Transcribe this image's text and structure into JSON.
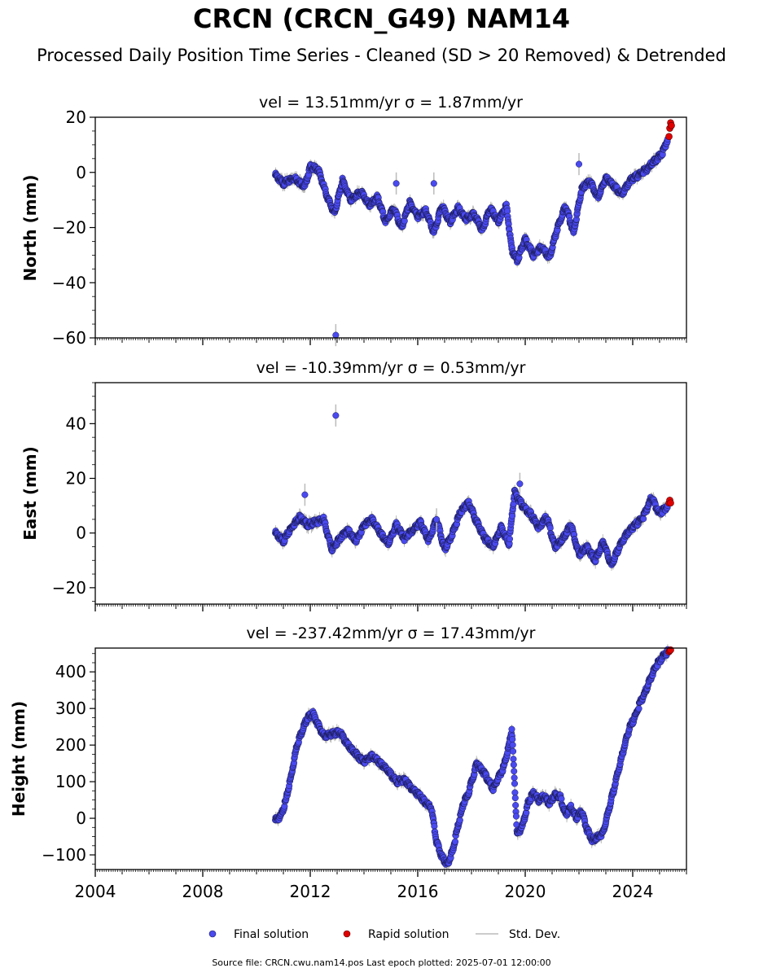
{
  "title": "CRCN (CRCN_G49) NAM14",
  "subtitle": "Processed Daily Position Time Series - Cleaned (SD > 20 Removed) & Detrended",
  "footer": "Source file: CRCN.cwu.nam14.pos  Last epoch plotted: 2025-07-01 12:00:00",
  "legend": {
    "final_label": "Final solution",
    "rapid_label": "Rapid solution",
    "std_label": "Std. Dev."
  },
  "colors": {
    "final": "#4a4af0",
    "final_edge": "#1a1a55",
    "rapid": "#e00000",
    "std": "#bbbbbb"
  },
  "chart_data": [
    {
      "type": "scatter",
      "panel": "north",
      "title": "vel = 13.51mm/yr   σ = 1.87mm/yr",
      "ylabel": "North (mm)",
      "xlim": [
        2004,
        2026
      ],
      "ylim": [
        -60,
        20
      ],
      "yticks": [
        -60,
        -40,
        -20,
        0,
        20
      ],
      "xticks": [
        2004,
        2008,
        2012,
        2016,
        2020,
        2024
      ],
      "show_xtick_labels": false,
      "series": [
        {
          "name": "Final solution",
          "x": [
            2010.7,
            2011.0,
            2011.4,
            2011.8,
            2012.0,
            2012.3,
            2012.6,
            2012.9,
            2013.2,
            2013.5,
            2013.9,
            2014.2,
            2014.5,
            2014.8,
            2015.1,
            2015.4,
            2015.7,
            2016.0,
            2016.3,
            2016.6,
            2016.9,
            2017.2,
            2017.5,
            2017.8,
            2018.1,
            2018.4,
            2018.7,
            2019.0,
            2019.3,
            2019.5,
            2019.7,
            2020.0,
            2020.3,
            2020.6,
            2020.9,
            2021.2,
            2021.5,
            2021.8,
            2022.1,
            2022.4,
            2022.7,
            2023.0,
            2023.3,
            2023.6,
            2023.9,
            2024.2,
            2024.5,
            2024.8,
            2025.1,
            2025.3
          ],
          "y": [
            -1,
            -4,
            -2,
            -5,
            2,
            1,
            -8,
            -15,
            -3,
            -10,
            -7,
            -12,
            -9,
            -18,
            -13,
            -20,
            -11,
            -16,
            -14,
            -22,
            -12,
            -18,
            -13,
            -17,
            -15,
            -21,
            -13,
            -18,
            -12,
            -28,
            -32,
            -24,
            -30,
            -27,
            -31,
            -20,
            -12,
            -22,
            -6,
            -3,
            -9,
            -2,
            -5,
            -8,
            -3,
            -1,
            1,
            4,
            7,
            12
          ]
        },
        {
          "name": "Rapid solution",
          "x": [
            2025.35,
            2025.38,
            2025.41,
            2025.44
          ],
          "y": [
            13,
            16,
            18,
            17
          ]
        }
      ],
      "outliers": [
        {
          "x": 2012.95,
          "y": -59
        },
        {
          "x": 2015.2,
          "y": -4
        },
        {
          "x": 2016.6,
          "y": -4
        },
        {
          "x": 2022.0,
          "y": 3
        }
      ]
    },
    {
      "type": "scatter",
      "panel": "east",
      "title": "vel = -10.39mm/yr   σ = 0.53mm/yr",
      "ylabel": "East (mm)",
      "xlim": [
        2004,
        2026
      ],
      "ylim": [
        -26,
        55
      ],
      "yticks": [
        -20,
        0,
        20,
        40
      ],
      "xticks": [
        2004,
        2008,
        2012,
        2016,
        2020,
        2024
      ],
      "show_xtick_labels": false,
      "series": [
        {
          "name": "Final solution",
          "x": [
            2010.7,
            2011.0,
            2011.3,
            2011.6,
            2011.9,
            2012.2,
            2012.5,
            2012.8,
            2013.1,
            2013.4,
            2013.7,
            2014.0,
            2014.3,
            2014.6,
            2014.9,
            2015.2,
            2015.5,
            2015.8,
            2016.1,
            2016.4,
            2016.7,
            2017.0,
            2017.3,
            2017.6,
            2017.9,
            2018.2,
            2018.5,
            2018.8,
            2019.1,
            2019.4,
            2019.6,
            2019.9,
            2020.2,
            2020.5,
            2020.8,
            2021.1,
            2021.4,
            2021.7,
            2022.0,
            2022.3,
            2022.6,
            2022.9,
            2023.2,
            2023.5,
            2023.8,
            2024.1,
            2024.4,
            2024.7,
            2025.0,
            2025.3
          ],
          "y": [
            0,
            -3,
            2,
            6,
            3,
            4,
            5,
            -6,
            -2,
            1,
            -3,
            3,
            5,
            0,
            -4,
            3,
            -2,
            1,
            4,
            -3,
            5,
            -6,
            0,
            8,
            11,
            4,
            -2,
            -5,
            2,
            -4,
            15,
            10,
            7,
            2,
            6,
            -5,
            -2,
            3,
            -8,
            -5,
            -10,
            -3,
            -12,
            -5,
            0,
            3,
            6,
            13,
            7,
            10
          ]
        },
        {
          "name": "Rapid solution",
          "x": [
            2025.35,
            2025.38,
            2025.41
          ],
          "y": [
            11,
            12,
            11
          ]
        }
      ],
      "outliers": [
        {
          "x": 2012.95,
          "y": 43
        },
        {
          "x": 2011.8,
          "y": 14
        },
        {
          "x": 2016.7,
          "y": 5
        },
        {
          "x": 2019.8,
          "y": 18
        }
      ]
    },
    {
      "type": "scatter",
      "panel": "height",
      "title": "vel = -237.42mm/yr   σ = 17.43mm/yr",
      "ylabel": "Height (mm)",
      "xlim": [
        2004,
        2026
      ],
      "ylim": [
        -140,
        465
      ],
      "yticks": [
        -100,
        0,
        100,
        200,
        300,
        400
      ],
      "xticks": [
        2004,
        2008,
        2012,
        2016,
        2020,
        2024
      ],
      "xtick_labels": [
        "2004",
        "2008",
        "2012",
        "2016",
        "2020",
        "2024"
      ],
      "show_xtick_labels": true,
      "series": [
        {
          "name": "Final solution",
          "x": [
            2010.7,
            2010.9,
            2011.1,
            2011.3,
            2011.5,
            2011.7,
            2011.9,
            2012.1,
            2012.3,
            2012.5,
            2012.8,
            2013.1,
            2013.4,
            2013.7,
            2014.0,
            2014.3,
            2014.6,
            2014.9,
            2015.2,
            2015.5,
            2015.8,
            2016.1,
            2016.3,
            2016.5,
            2016.7,
            2016.9,
            2017.1,
            2017.3,
            2017.5,
            2017.7,
            2017.9,
            2018.0,
            2018.2,
            2018.5,
            2018.8,
            2019.0,
            2019.2,
            2019.4,
            2019.5,
            2019.7,
            2019.9,
            2020.1,
            2020.3,
            2020.5,
            2020.7,
            2020.9,
            2021.1,
            2021.3,
            2021.5,
            2021.7,
            2021.9,
            2022.1,
            2022.3,
            2022.5,
            2022.7,
            2022.9,
            2023.1,
            2023.3,
            2023.5,
            2023.7,
            2023.9,
            2024.1,
            2024.3,
            2024.5,
            2024.7,
            2024.9,
            2025.1,
            2025.3
          ],
          "y": [
            -5,
            5,
            50,
            120,
            200,
            240,
            275,
            285,
            255,
            225,
            230,
            235,
            200,
            175,
            155,
            170,
            150,
            130,
            100,
            105,
            80,
            60,
            40,
            30,
            -65,
            -105,
            -125,
            -90,
            -20,
            40,
            70,
            100,
            150,
            120,
            80,
            110,
            140,
            200,
            245,
            -45,
            -20,
            40,
            70,
            50,
            60,
            40,
            65,
            60,
            10,
            30,
            0,
            20,
            -30,
            -60,
            -50,
            -40,
            20,
            80,
            140,
            200,
            250,
            280,
            320,
            350,
            390,
            420,
            440,
            455
          ]
        },
        {
          "name": "Rapid solution",
          "x": [
            2025.35,
            2025.38,
            2025.41
          ],
          "y": [
            455,
            458,
            460
          ]
        }
      ],
      "outliers": []
    }
  ]
}
